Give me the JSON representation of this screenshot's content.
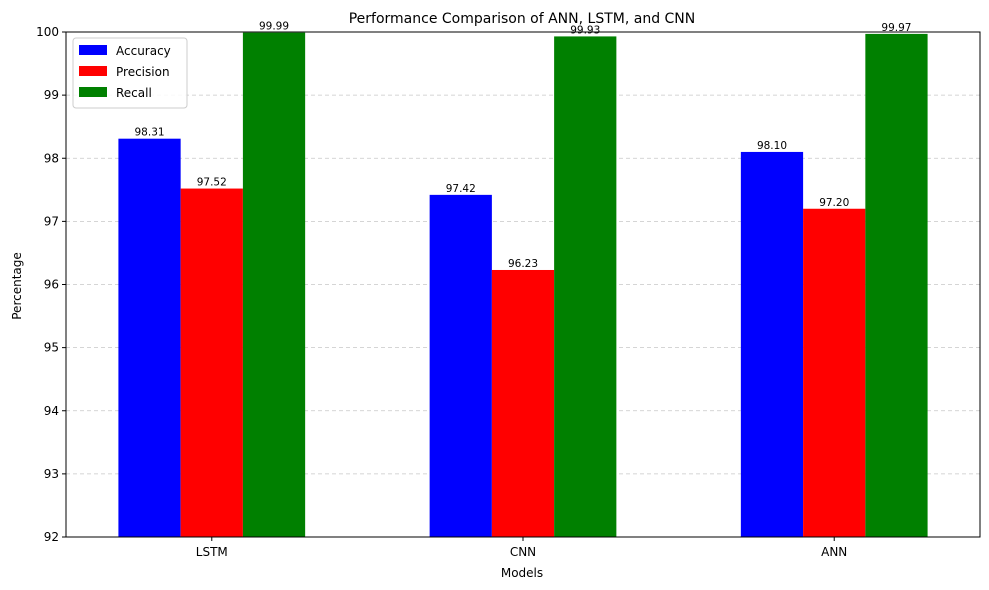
{
  "chart_data": {
    "type": "bar",
    "title": "Performance Comparison of ANN, LSTM, and CNN",
    "xlabel": "Models",
    "ylabel": "Percentage",
    "categories": [
      "LSTM",
      "CNN",
      "ANN"
    ],
    "series": [
      {
        "name": "Accuracy",
        "color": "#0000ff",
        "values": [
          98.31,
          97.42,
          98.1
        ]
      },
      {
        "name": "Precision",
        "color": "#ff0000",
        "values": [
          97.52,
          96.23,
          97.2
        ]
      },
      {
        "name": "Recall",
        "color": "#008000",
        "values": [
          99.99,
          99.93,
          99.97
        ]
      }
    ],
    "ylim": [
      92,
      100
    ],
    "yticks": [
      92,
      93,
      94,
      95,
      96,
      97,
      98,
      99,
      100
    ],
    "grid": "y, dashed",
    "legend_position": "top-left",
    "data_label_format": "2 decimals"
  }
}
